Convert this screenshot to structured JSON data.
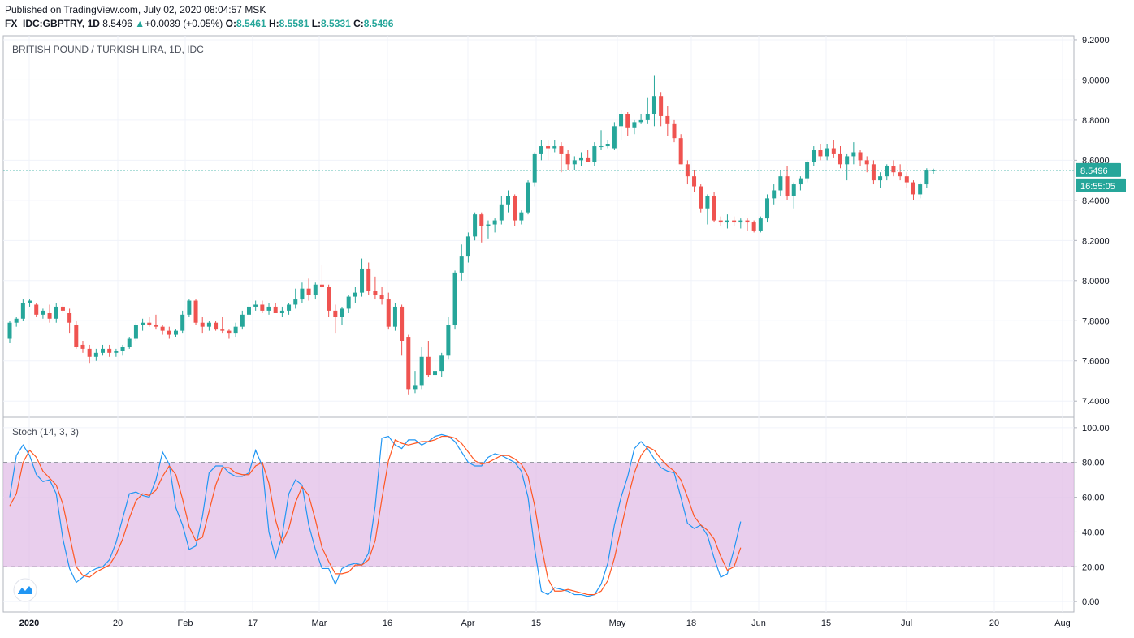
{
  "header": {
    "published": "Published on TradingView.com, July 02, 2020 08:04:57 MSK",
    "symbol": "FX_IDC:GBPTRY, 1D",
    "last": "8.5496",
    "change": "+0.0039 (+0.05%)",
    "o_label": "O:",
    "o_value": "8.5461",
    "h_label": "H:",
    "h_value": "8.5581",
    "l_label": "L:",
    "l_value": "8.5331",
    "c_label": "C:",
    "c_value": "8.5496"
  },
  "main_pane": {
    "title": "BRITISH POUND / TURKISH LIRA, 1D, IDC",
    "price_ticks": [
      "9.2000",
      "9.0000",
      "8.8000",
      "8.6000",
      "8.4000",
      "8.2000",
      "8.0000",
      "7.8000",
      "7.6000",
      "7.4000"
    ],
    "last_price_label": "8.5496",
    "countdown_label": "16:55:05"
  },
  "stoch_pane": {
    "title": "Stoch (14, 3, 3)",
    "ticks": [
      "100.00",
      "80.00",
      "60.00",
      "40.00",
      "20.00",
      "0.00"
    ]
  },
  "time_axis": {
    "labels": [
      "2020",
      "20",
      "Feb",
      "17",
      "Mar",
      "16",
      "Apr",
      "15",
      "May",
      "18",
      "Jun",
      "15",
      "Jul",
      "20",
      "Aug"
    ]
  },
  "colors": {
    "up": "#26a69a",
    "down": "#ef5350",
    "k_line": "#2196f3",
    "d_line": "#ff5722",
    "band": "#e1bee7"
  },
  "icons": {
    "logo": "tradingview-logo-icon"
  },
  "chart_data": {
    "type": "candlestick",
    "ylim": [
      7.32,
      9.22
    ],
    "stoch_ylim": [
      -6,
      106
    ],
    "candles_ohlc": [
      [
        7.71,
        7.8,
        7.69,
        7.79
      ],
      [
        7.79,
        7.82,
        7.77,
        7.81
      ],
      [
        7.81,
        7.91,
        7.8,
        7.89
      ],
      [
        7.89,
        7.91,
        7.87,
        7.9
      ],
      [
        7.88,
        7.89,
        7.82,
        7.83
      ],
      [
        7.83,
        7.86,
        7.81,
        7.85
      ],
      [
        7.84,
        7.88,
        7.79,
        7.81
      ],
      [
        7.81,
        7.89,
        7.79,
        7.87
      ],
      [
        7.87,
        7.89,
        7.84,
        7.85
      ],
      [
        7.84,
        7.86,
        7.74,
        7.79
      ],
      [
        7.78,
        7.8,
        7.66,
        7.67
      ],
      [
        7.68,
        7.7,
        7.64,
        7.66
      ],
      [
        7.66,
        7.68,
        7.59,
        7.62
      ],
      [
        7.62,
        7.66,
        7.6,
        7.64
      ],
      [
        7.64,
        7.68,
        7.63,
        7.66
      ],
      [
        7.66,
        7.68,
        7.62,
        7.64
      ],
      [
        7.64,
        7.66,
        7.62,
        7.65
      ],
      [
        7.65,
        7.68,
        7.63,
        7.67
      ],
      [
        7.67,
        7.72,
        7.66,
        7.71
      ],
      [
        7.71,
        7.79,
        7.7,
        7.78
      ],
      [
        7.78,
        7.81,
        7.75,
        7.79
      ],
      [
        7.79,
        7.82,
        7.77,
        7.78
      ],
      [
        7.78,
        7.83,
        7.76,
        7.77
      ],
      [
        7.77,
        7.78,
        7.73,
        7.75
      ],
      [
        7.75,
        7.77,
        7.71,
        7.73
      ],
      [
        7.73,
        7.76,
        7.72,
        7.75
      ],
      [
        7.75,
        7.85,
        7.74,
        7.83
      ],
      [
        7.83,
        7.91,
        7.82,
        7.9
      ],
      [
        7.9,
        7.91,
        7.78,
        7.79
      ],
      [
        7.79,
        7.82,
        7.74,
        7.77
      ],
      [
        7.77,
        7.8,
        7.75,
        7.79
      ],
      [
        7.79,
        7.8,
        7.75,
        7.76
      ],
      [
        7.76,
        7.82,
        7.74,
        7.75
      ],
      [
        7.75,
        7.76,
        7.71,
        7.74
      ],
      [
        7.74,
        7.79,
        7.72,
        7.77
      ],
      [
        7.77,
        7.85,
        7.76,
        7.83
      ],
      [
        7.83,
        7.9,
        7.82,
        7.87
      ],
      [
        7.87,
        7.9,
        7.85,
        7.88
      ],
      [
        7.88,
        7.9,
        7.84,
        7.85
      ],
      [
        7.85,
        7.89,
        7.83,
        7.87
      ],
      [
        7.87,
        7.89,
        7.84,
        7.84
      ],
      [
        7.84,
        7.87,
        7.82,
        7.85
      ],
      [
        7.85,
        7.89,
        7.83,
        7.88
      ],
      [
        7.88,
        7.96,
        7.86,
        7.91
      ],
      [
        7.91,
        7.99,
        7.89,
        7.96
      ],
      [
        7.96,
        8.01,
        7.9,
        7.93
      ],
      [
        7.93,
        7.99,
        7.91,
        7.98
      ],
      [
        7.98,
        8.08,
        7.96,
        7.97
      ],
      [
        7.97,
        7.98,
        7.82,
        7.85
      ],
      [
        7.85,
        7.88,
        7.74,
        7.82
      ],
      [
        7.82,
        7.87,
        7.78,
        7.86
      ],
      [
        7.86,
        7.93,
        7.84,
        7.92
      ],
      [
        7.92,
        7.97,
        7.89,
        7.94
      ],
      [
        7.94,
        8.11,
        7.92,
        8.06
      ],
      [
        8.06,
        8.09,
        7.93,
        7.95
      ],
      [
        7.95,
        8.02,
        7.91,
        7.93
      ],
      [
        7.93,
        7.97,
        7.88,
        7.91
      ],
      [
        7.91,
        7.94,
        7.76,
        7.77
      ],
      [
        7.77,
        7.89,
        7.75,
        7.87
      ],
      [
        7.87,
        7.88,
        7.63,
        7.7
      ],
      [
        7.72,
        7.73,
        7.43,
        7.46
      ],
      [
        7.46,
        7.55,
        7.44,
        7.48
      ],
      [
        7.48,
        7.67,
        7.46,
        7.62
      ],
      [
        7.62,
        7.7,
        7.52,
        7.53
      ],
      [
        7.53,
        7.58,
        7.51,
        7.55
      ],
      [
        7.55,
        7.64,
        7.52,
        7.63
      ],
      [
        7.63,
        7.82,
        7.61,
        7.78
      ],
      [
        7.78,
        8.05,
        7.76,
        8.04
      ],
      [
        8.04,
        8.18,
        8.0,
        8.12
      ],
      [
        8.12,
        8.24,
        8.09,
        8.22
      ],
      [
        8.22,
        8.34,
        8.2,
        8.33
      ],
      [
        8.33,
        8.34,
        8.19,
        8.27
      ],
      [
        8.27,
        8.3,
        8.21,
        8.28
      ],
      [
        8.28,
        8.31,
        8.24,
        8.3
      ],
      [
        8.3,
        8.42,
        8.28,
        8.38
      ],
      [
        8.38,
        8.45,
        8.34,
        8.42
      ],
      [
        8.42,
        8.43,
        8.27,
        8.3
      ],
      [
        8.3,
        8.35,
        8.28,
        8.34
      ],
      [
        8.34,
        8.5,
        8.33,
        8.49
      ],
      [
        8.49,
        8.64,
        8.47,
        8.63
      ],
      [
        8.63,
        8.7,
        8.6,
        8.67
      ],
      [
        8.67,
        8.7,
        8.6,
        8.66
      ],
      [
        8.66,
        8.7,
        8.64,
        8.67
      ],
      [
        8.67,
        8.69,
        8.54,
        8.63
      ],
      [
        8.63,
        8.65,
        8.55,
        8.58
      ],
      [
        8.58,
        8.62,
        8.55,
        8.6
      ],
      [
        8.6,
        8.64,
        8.57,
        8.61
      ],
      [
        8.61,
        8.65,
        8.59,
        8.59
      ],
      [
        8.59,
        8.69,
        8.57,
        8.67
      ],
      [
        8.67,
        8.75,
        8.65,
        8.67
      ],
      [
        8.67,
        8.7,
        8.66,
        8.68
      ],
      [
        8.66,
        8.79,
        8.65,
        8.77
      ],
      [
        8.77,
        8.85,
        8.7,
        8.83
      ],
      [
        8.83,
        8.84,
        8.72,
        8.76
      ],
      [
        8.76,
        8.8,
        8.73,
        8.79
      ],
      [
        8.79,
        8.83,
        8.78,
        8.8
      ],
      [
        8.8,
        8.91,
        8.78,
        8.83
      ],
      [
        8.83,
        9.02,
        8.77,
        8.92
      ],
      [
        8.92,
        8.94,
        8.77,
        8.82
      ],
      [
        8.82,
        8.87,
        8.72,
        8.78
      ],
      [
        8.78,
        8.8,
        8.69,
        8.71
      ],
      [
        8.71,
        8.73,
        8.58,
        8.58
      ],
      [
        8.58,
        8.6,
        8.48,
        8.52
      ],
      [
        8.52,
        8.55,
        8.44,
        8.47
      ],
      [
        8.47,
        8.48,
        8.34,
        8.36
      ],
      [
        8.36,
        8.43,
        8.28,
        8.42
      ],
      [
        8.42,
        8.44,
        8.29,
        8.3
      ],
      [
        8.3,
        8.32,
        8.27,
        8.29
      ],
      [
        8.29,
        8.33,
        8.26,
        8.3
      ],
      [
        8.3,
        8.32,
        8.27,
        8.29
      ],
      [
        8.29,
        8.31,
        8.26,
        8.3
      ],
      [
        8.3,
        8.31,
        8.25,
        8.29
      ],
      [
        8.29,
        8.3,
        8.24,
        8.25
      ],
      [
        8.25,
        8.32,
        8.24,
        8.31
      ],
      [
        8.31,
        8.43,
        8.29,
        8.41
      ],
      [
        8.41,
        8.48,
        8.38,
        8.45
      ],
      [
        8.45,
        8.55,
        8.42,
        8.52
      ],
      [
        8.52,
        8.57,
        8.4,
        8.42
      ],
      [
        8.42,
        8.49,
        8.36,
        8.48
      ],
      [
        8.48,
        8.52,
        8.45,
        8.51
      ],
      [
        8.51,
        8.6,
        8.49,
        8.59
      ],
      [
        8.59,
        8.67,
        8.57,
        8.65
      ],
      [
        8.65,
        8.68,
        8.6,
        8.62
      ],
      [
        8.62,
        8.68,
        8.6,
        8.66
      ],
      [
        8.66,
        8.7,
        8.61,
        8.63
      ],
      [
        8.63,
        8.67,
        8.56,
        8.58
      ],
      [
        8.58,
        8.63,
        8.5,
        8.62
      ],
      [
        8.62,
        8.69,
        8.58,
        8.64
      ],
      [
        8.64,
        8.65,
        8.57,
        8.6
      ],
      [
        8.6,
        8.62,
        8.54,
        8.58
      ],
      [
        8.58,
        8.6,
        8.48,
        8.5
      ],
      [
        8.5,
        8.54,
        8.46,
        8.52
      ],
      [
        8.52,
        8.58,
        8.5,
        8.57
      ],
      [
        8.57,
        8.6,
        8.52,
        8.54
      ],
      [
        8.54,
        8.58,
        8.5,
        8.52
      ],
      [
        8.52,
        8.54,
        8.46,
        8.49
      ],
      [
        8.49,
        8.5,
        8.4,
        8.43
      ],
      [
        8.43,
        8.49,
        8.41,
        8.48
      ],
      [
        8.48,
        8.56,
        8.46,
        8.55
      ],
      [
        8.5461,
        8.5581,
        8.5331,
        8.5496
      ]
    ],
    "stoch_k": [
      60,
      84,
      90,
      84,
      73,
      69,
      70,
      62,
      36,
      19,
      11,
      14,
      17,
      19,
      20,
      24,
      34,
      48,
      62,
      63,
      61,
      60,
      70,
      86,
      79,
      54,
      44,
      30,
      32,
      49,
      74,
      78,
      78,
      74,
      72,
      72,
      74,
      87,
      78,
      40,
      25,
      38,
      62,
      70,
      67,
      44,
      30,
      19,
      19,
      10,
      19,
      21,
      22,
      21,
      28,
      55,
      94,
      95,
      90,
      88,
      93,
      93,
      90,
      92,
      95,
      96,
      95,
      92,
      86,
      80,
      78,
      78,
      83,
      85,
      84,
      82,
      80,
      75,
      60,
      30,
      6,
      4,
      8,
      7,
      6,
      4,
      4,
      3,
      4,
      10,
      22,
      44,
      60,
      72,
      88,
      92,
      88,
      82,
      77,
      75,
      74,
      60,
      45,
      42,
      44,
      38,
      25,
      14,
      16,
      30,
      46
    ],
    "stoch_d": [
      55,
      62,
      80,
      87,
      83,
      75,
      71,
      67,
      56,
      38,
      20,
      15,
      14,
      17,
      19,
      21,
      27,
      36,
      48,
      58,
      62,
      61,
      64,
      72,
      78,
      73,
      59,
      43,
      35,
      37,
      52,
      67,
      77,
      77,
      74,
      73,
      73,
      78,
      80,
      68,
      47,
      34,
      42,
      57,
      66,
      61,
      47,
      31,
      23,
      16,
      16,
      17,
      21,
      21,
      24,
      35,
      59,
      81,
      93,
      91,
      90,
      91,
      92,
      92,
      93,
      95,
      95,
      94,
      91,
      86,
      81,
      79,
      80,
      82,
      84,
      84,
      82,
      79,
      72,
      55,
      32,
      13,
      6,
      6,
      7,
      6,
      5,
      4,
      4,
      6,
      12,
      25,
      42,
      59,
      74,
      84,
      89,
      87,
      82,
      78,
      75,
      70,
      60,
      49,
      44,
      41,
      36,
      26,
      18,
      20,
      31
    ]
  }
}
